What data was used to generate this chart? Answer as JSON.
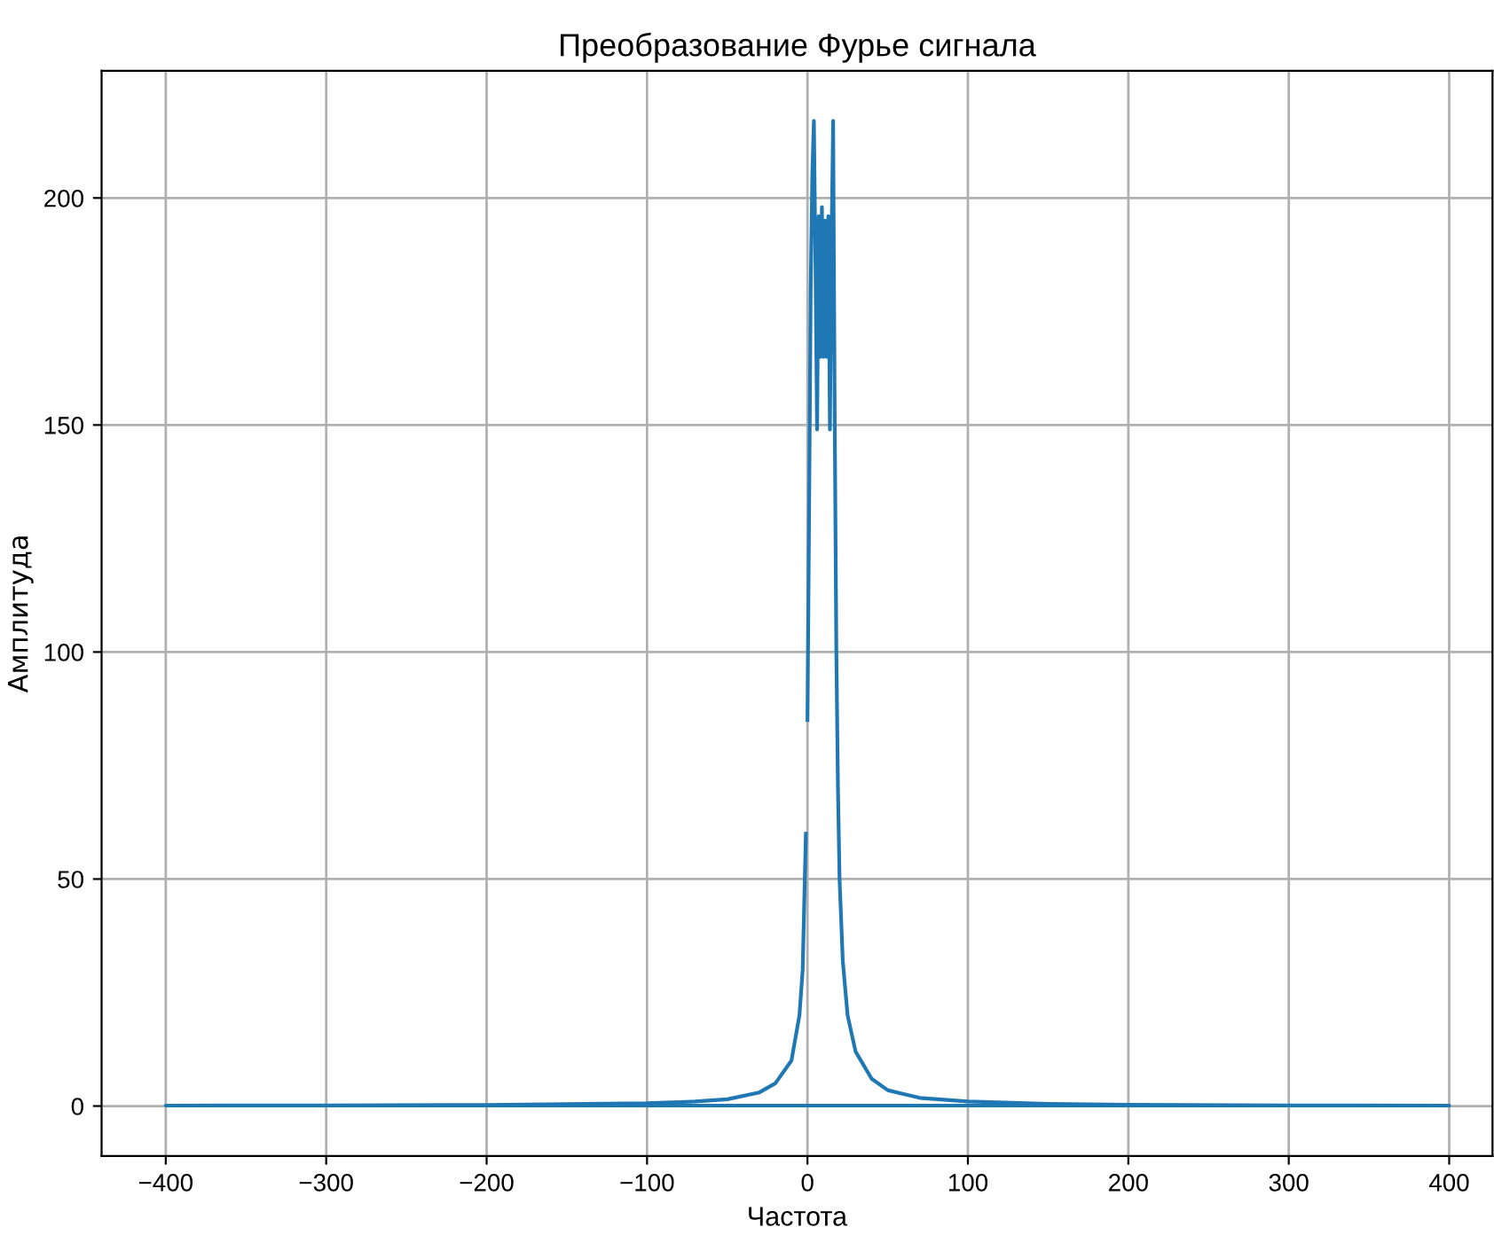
{
  "chart_data": {
    "type": "line",
    "title": "Преобразование Фурье сигнала",
    "xlabel": "Частота",
    "ylabel": "Амплитуда",
    "series": [
      {
        "color": "#1f77b4",
        "x": [
          0,
          1,
          2,
          3,
          4,
          5,
          6,
          7,
          8,
          9,
          10,
          11,
          12,
          13,
          14,
          15,
          16,
          17,
          18,
          19,
          20,
          22,
          25,
          30,
          40,
          50,
          70,
          100,
          150,
          200,
          300,
          400,
          -400,
          -300,
          -200,
          -100,
          -70,
          -50,
          -30,
          -20,
          -10,
          -5,
          -3,
          -2,
          -1
        ],
        "values": [
          85,
          130,
          180,
          205,
          217,
          185,
          149,
          196,
          165,
          198,
          165,
          195,
          165,
          196,
          149,
          190,
          217,
          150,
          100,
          70,
          50,
          32,
          20,
          12,
          6,
          3.5,
          1.8,
          1,
          0.5,
          0.3,
          0.15,
          0.1,
          0.1,
          0.15,
          0.25,
          0.6,
          1,
          1.5,
          3,
          5,
          10,
          20,
          30,
          45,
          60
        ]
      }
    ],
    "xlim": [
      -440,
      427
    ],
    "ylim": [
      -11,
      228
    ],
    "xticks": [
      {
        "value": -400,
        "label": "−400"
      },
      {
        "value": -300,
        "label": "−300"
      },
      {
        "value": -200,
        "label": "−200"
      },
      {
        "value": -100,
        "label": "−100"
      },
      0,
      100,
      200,
      300,
      400
    ],
    "yticks": [
      0,
      50,
      100,
      150,
      200
    ],
    "grid": true
  }
}
